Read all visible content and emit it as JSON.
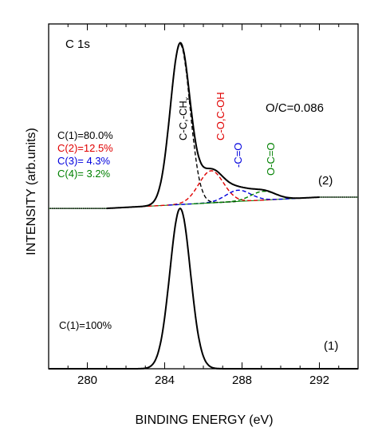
{
  "chart_data": {
    "type": "line",
    "title": "",
    "xlabel": "BINDING ENERGY (eV)",
    "ylabel": "INTENSITY (arb.units)",
    "xlim": [
      278,
      294
    ],
    "xticks": [
      280,
      284,
      288,
      292
    ],
    "xtick_labels": [
      "280",
      "284",
      "288",
      "292"
    ],
    "xaxis_direction": "increasing-right",
    "ylim": [
      0,
      2.15
    ],
    "ytick_labels": false,
    "grid": false,
    "legend": false,
    "annotations": {
      "peak_label": "C 1s",
      "ratio": "O/C=0.086",
      "spectrum2_label": "(2)",
      "spectrum1_label": "(1)",
      "comp1_label": "C-C,-CH",
      "comp1_subscript": "x",
      "comp2_label": "C-O,C-OH",
      "comp3_label": "-C=O",
      "comp4_label": "O-C=O",
      "spectrum2_fractions": [
        "C(1)=80.0%",
        "C(2)=12.5%",
        "C(3)= 4.3%",
        "C(4)= 3.2%"
      ],
      "spectrum1_fraction": "C(1)=100%"
    },
    "colors": {
      "comp1": "#000000",
      "comp2": "#e00000",
      "comp3": "#0000dd",
      "comp4": "#008000",
      "envelope": "#000000",
      "data_points": "#000000"
    },
    "series": [
      {
        "name": "(2)",
        "offset": 1.0,
        "baseline": [
          [
            278,
            0.0
          ],
          [
            280,
            0.0
          ],
          [
            281,
            0.0
          ],
          [
            292,
            0.07
          ],
          [
            294,
            0.07
          ]
        ],
        "x": [
          281,
          283,
          283.5,
          284,
          284.4,
          284.8,
          285.2,
          285.6,
          286,
          286.5,
          287,
          287.5,
          288,
          288.5,
          289,
          290,
          291,
          292
        ],
        "y": [
          0.0,
          0.08,
          0.25,
          0.62,
          0.9,
          1.0,
          0.88,
          0.6,
          0.4,
          0.3,
          0.22,
          0.17,
          0.14,
          0.12,
          0.1,
          0.08,
          0.07,
          0.07
        ],
        "components": [
          {
            "label": "C(1)",
            "center": 284.8,
            "height": 1.0,
            "width": 1.2,
            "fraction": 80.0
          },
          {
            "label": "C(2)",
            "center": 286.4,
            "height": 0.2,
            "width": 1.5,
            "fraction": 12.5
          },
          {
            "label": "C(3)",
            "center": 287.8,
            "height": 0.07,
            "width": 1.5,
            "fraction": 4.3
          },
          {
            "label": "C(4)",
            "center": 289.1,
            "height": 0.055,
            "width": 1.5,
            "fraction": 3.2
          }
        ]
      },
      {
        "name": "(1)",
        "offset": 0.0,
        "baseline": [
          [
            278,
            0.0
          ],
          [
            294,
            0.0
          ]
        ],
        "x": [
          278,
          281,
          283,
          283.8,
          284.2,
          284.6,
          284.8,
          285.1,
          285.5,
          286,
          286.5,
          287,
          288,
          290,
          294
        ],
        "y": [
          0.0,
          0.0,
          0.04,
          0.32,
          0.7,
          0.98,
          1.0,
          0.92,
          0.6,
          0.3,
          0.13,
          0.06,
          0.02,
          0.01,
          0.0
        ],
        "components": [
          {
            "label": "C(1)",
            "center": 284.8,
            "height": 1.0,
            "width": 1.25,
            "fraction": 100
          }
        ]
      }
    ]
  }
}
